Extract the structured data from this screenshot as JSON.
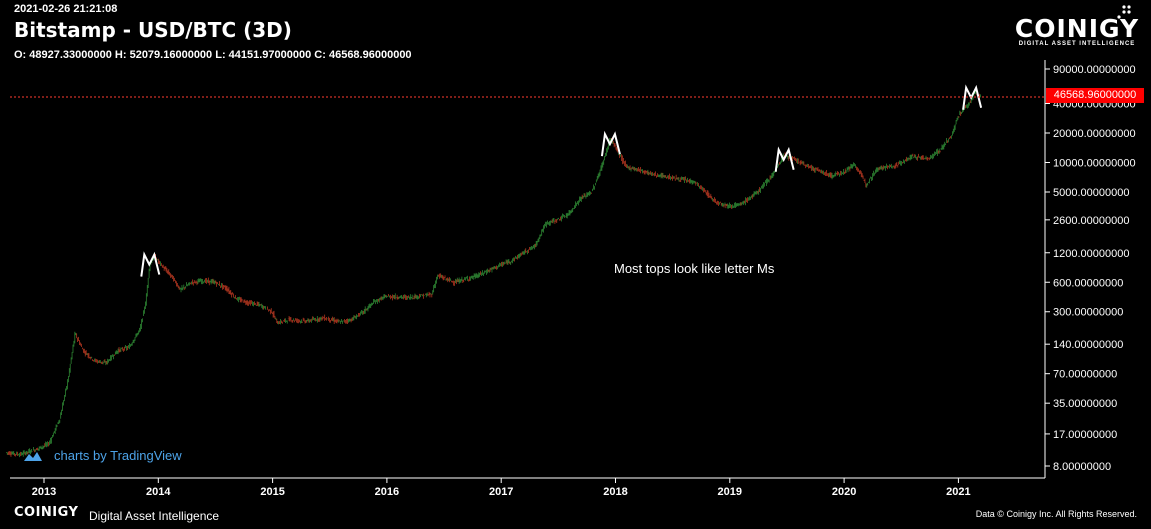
{
  "header": {
    "timestamp": "2021-02-26 21:21:08",
    "title": "Bitstamp - USD/BTC (3D)",
    "ohlc": "O: 48927.33000000 H: 52079.16000000 L: 44151.97000000 C: 46568.96000000"
  },
  "logo": {
    "word": "COINIGY",
    "tagline": "DIGITAL ASSET INTELLIGENCE"
  },
  "footer": {
    "brand": "COINIGY",
    "brand_sub": "Digital Asset Intelligence",
    "copyright": "Data © Coinigy Inc.  All Rights Reserved."
  },
  "watermark": {
    "label": "charts by TradingView"
  },
  "colors": {
    "up": "#3cb043",
    "down": "#e8472a",
    "price_line": "#ff3b30",
    "axis_text": "#ffffff",
    "accent": "#4da3e8"
  },
  "chart_data": {
    "type": "line",
    "scale": "log",
    "grid": false,
    "current_price": 46568.96,
    "current_price_label": "46568.96000000",
    "annotation": "Most tops look like letter Ms",
    "y_ticks": [
      90000,
      40000,
      20000,
      10000,
      5000,
      2600,
      1200,
      600,
      300,
      140,
      70,
      35,
      17,
      8
    ],
    "y_tick_labels": [
      "90000.00000000",
      "40000.00000000",
      "20000.00000000",
      "10000.00000000",
      "5000.00000000",
      "2600.00000000",
      "1200.00000000",
      "600.00000000",
      "300.00000000",
      "140.00000000",
      "70.00000000",
      "35.00000000",
      "17.00000000",
      "8.00000000"
    ],
    "x_ticks": [
      "2013",
      "2014",
      "2015",
      "2016",
      "2017",
      "2018",
      "2019",
      "2020",
      "2021"
    ],
    "x_tick_years": [
      2013,
      2014,
      2015,
      2016,
      2017,
      2018,
      2019,
      2020,
      2021
    ],
    "series": [
      {
        "x": [
          2012.67,
          2012.8,
          2012.95,
          2013.05,
          2013.15,
          2013.22,
          2013.28,
          2013.35,
          2013.45,
          2013.55,
          2013.65,
          2013.75,
          2013.85,
          2013.9,
          2013.93,
          2013.97,
          2014.05,
          2014.12,
          2014.2,
          2014.3,
          2014.4,
          2014.5,
          2014.6,
          2014.7,
          2014.8,
          2014.9,
          2015.0,
          2015.05,
          2015.15,
          2015.3,
          2015.45,
          2015.6,
          2015.7,
          2015.8,
          2015.9,
          2016.0,
          2016.2,
          2016.4,
          2016.45,
          2016.6,
          2016.8,
          2017.0,
          2017.1,
          2017.2,
          2017.3,
          2017.4,
          2017.5,
          2017.6,
          2017.7,
          2017.8,
          2017.9,
          2017.96,
          2018.02,
          2018.1,
          2018.2,
          2018.35,
          2018.5,
          2018.7,
          2018.88,
          2019.0,
          2019.1,
          2019.25,
          2019.4,
          2019.48,
          2019.55,
          2019.7,
          2019.9,
          2020.0,
          2020.1,
          2020.2,
          2020.3,
          2020.45,
          2020.6,
          2020.75,
          2020.85,
          2020.95,
          2021.0,
          2021.05,
          2021.1,
          2021.15,
          2021.2
        ],
        "values": [
          11,
          10.5,
          12,
          13.5,
          25,
          65,
          180,
          120,
          95,
          90,
          120,
          130,
          200,
          400,
          900,
          1100,
          850,
          700,
          500,
          600,
          620,
          600,
          520,
          400,
          370,
          350,
          300,
          230,
          250,
          240,
          260,
          235,
          250,
          300,
          380,
          430,
          420,
          450,
          700,
          600,
          700,
          900,
          1000,
          1200,
          1400,
          2400,
          2600,
          3000,
          4300,
          5000,
          10000,
          17500,
          13500,
          9000,
          8500,
          7500,
          7000,
          6300,
          4000,
          3600,
          3700,
          5000,
          8000,
          12000,
          11000,
          9000,
          7300,
          8000,
          9500,
          6000,
          8800,
          9200,
          11500,
          11000,
          13500,
          19000,
          29000,
          35000,
          40000,
          52000,
          46568
        ]
      }
    ]
  }
}
